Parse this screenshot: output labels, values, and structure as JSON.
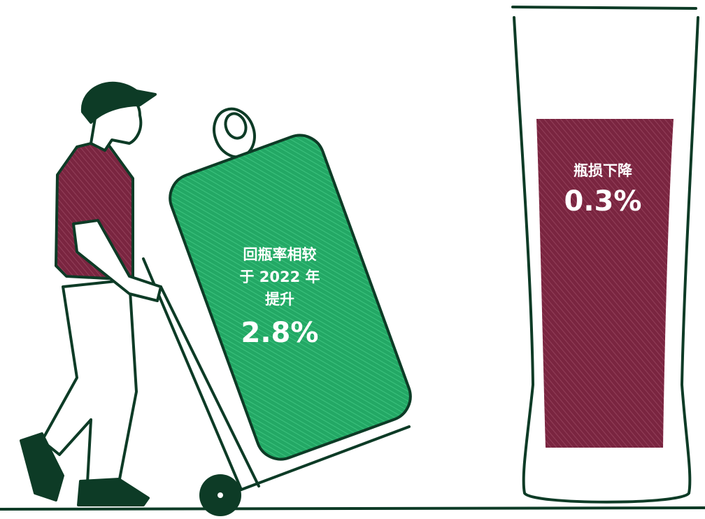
{
  "can": {
    "lines": [
      "回瓶率相较",
      "于 2022 年",
      "提升"
    ],
    "figure": "2.8%"
  },
  "glass": {
    "label": "瓶损下降",
    "figure": "0.3%"
  }
}
